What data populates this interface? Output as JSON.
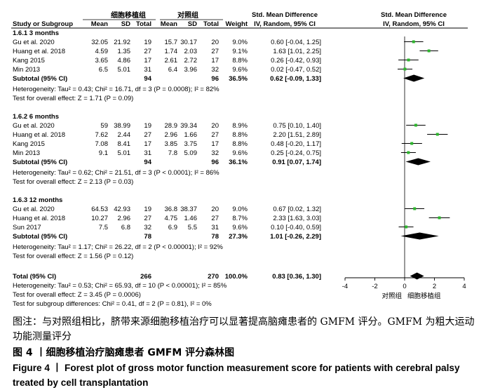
{
  "header": {
    "exp_group": "细胞移植组",
    "ctrl_group": "对照组",
    "smd": "Std. Mean Difference",
    "ivrandom": "IV, Random, 95% CI",
    "cols": [
      "Study or Subgroup",
      "Mean",
      "SD",
      "Total",
      "Mean",
      "SD",
      "Total",
      "Weight",
      "IV, Random, 95% CI"
    ]
  },
  "chart_data": {
    "type": "forest",
    "x_ticks": [
      -4,
      -2,
      0,
      2,
      4
    ],
    "xlim": [
      -4,
      4
    ],
    "favours_left": "对照组",
    "favours_right": "细胞移植组",
    "subgroups": [
      {
        "title": "1.6.1 3 months",
        "studies": [
          {
            "study": "Gu et al. 2020",
            "exp_mean": "32.05",
            "exp_sd": "21.92",
            "exp_n": "19",
            "ctrl_mean": "15.7",
            "ctrl_sd": "30.17",
            "ctrl_n": "20",
            "weight": "9.0%",
            "ci_text": "0.60 [-0.04, 1.25]",
            "est": 0.6,
            "lo": -0.04,
            "hi": 1.25
          },
          {
            "study": "Huang et al. 2018",
            "exp_mean": "4.59",
            "exp_sd": "1.35",
            "exp_n": "27",
            "ctrl_mean": "1.74",
            "ctrl_sd": "2.03",
            "ctrl_n": "27",
            "weight": "9.1%",
            "ci_text": "1.63 [1.01, 2.25]",
            "est": 1.63,
            "lo": 1.01,
            "hi": 2.25
          },
          {
            "study": "Kang 2015",
            "exp_mean": "3.65",
            "exp_sd": "4.86",
            "exp_n": "17",
            "ctrl_mean": "2.61",
            "ctrl_sd": "2.72",
            "ctrl_n": "17",
            "weight": "8.8%",
            "ci_text": "0.26 [-0.42, 0.93]",
            "est": 0.26,
            "lo": -0.42,
            "hi": 0.93
          },
          {
            "study": "Min 2013",
            "exp_mean": "6.5",
            "exp_sd": "5.01",
            "exp_n": "31",
            "ctrl_mean": "6.4",
            "ctrl_sd": "3.96",
            "ctrl_n": "32",
            "weight": "9.6%",
            "ci_text": "0.02 [-0.47, 0.52]",
            "est": 0.02,
            "lo": -0.47,
            "hi": 0.52
          }
        ],
        "subtotal": {
          "label": "Subtotal (95% CI)",
          "exp_n": "94",
          "ctrl_n": "96",
          "weight": "36.5%",
          "ci_text": "0.62 [-0.09, 1.33]",
          "est": 0.62,
          "lo": -0.09,
          "hi": 1.33
        },
        "heterogeneity": "Heterogeneity: Tau² = 0.43; Chi² = 16.71, df = 3 (P = 0.0008); I² = 82%",
        "overall_effect": "Test for overall effect: Z = 1.71 (P = 0.09)"
      },
      {
        "title": "1.6.2 6 months",
        "studies": [
          {
            "study": "Gu et al. 2020",
            "exp_mean": "59",
            "exp_sd": "38.99",
            "exp_n": "19",
            "ctrl_mean": "28.9",
            "ctrl_sd": "39.34",
            "ctrl_n": "20",
            "weight": "8.9%",
            "ci_text": "0.75 [0.10, 1.40]",
            "est": 0.75,
            "lo": 0.1,
            "hi": 1.4
          },
          {
            "study": "Huang et al. 2018",
            "exp_mean": "7.62",
            "exp_sd": "2.44",
            "exp_n": "27",
            "ctrl_mean": "2.96",
            "ctrl_sd": "1.66",
            "ctrl_n": "27",
            "weight": "8.8%",
            "ci_text": "2.20 [1.51, 2.89]",
            "est": 2.2,
            "lo": 1.51,
            "hi": 2.89
          },
          {
            "study": "Kang 2015",
            "exp_mean": "7.08",
            "exp_sd": "8.41",
            "exp_n": "17",
            "ctrl_mean": "3.85",
            "ctrl_sd": "3.75",
            "ctrl_n": "17",
            "weight": "8.8%",
            "ci_text": "0.48 [-0.20, 1.17]",
            "est": 0.48,
            "lo": -0.2,
            "hi": 1.17
          },
          {
            "study": "Min 2013",
            "exp_mean": "9.1",
            "exp_sd": "5.01",
            "exp_n": "31",
            "ctrl_mean": "7.8",
            "ctrl_sd": "5.09",
            "ctrl_n": "32",
            "weight": "9.6%",
            "ci_text": "0.25 [-0.24, 0.75]",
            "est": 0.25,
            "lo": -0.24,
            "hi": 0.75
          }
        ],
        "subtotal": {
          "label": "Subtotal (95% CI)",
          "exp_n": "94",
          "ctrl_n": "96",
          "weight": "36.1%",
          "ci_text": "0.91 [0.07, 1.74]",
          "est": 0.91,
          "lo": 0.07,
          "hi": 1.74
        },
        "heterogeneity": "Heterogeneity: Tau² = 0.62; Chi² = 21.51, df = 3 (P < 0.0001); I² = 86%",
        "overall_effect": "Test for overall effect: Z = 2.13 (P = 0.03)"
      },
      {
        "title": "1.6.3 12 months",
        "studies": [
          {
            "study": "Gu et al. 2020",
            "exp_mean": "64.53",
            "exp_sd": "42.93",
            "exp_n": "19",
            "ctrl_mean": "36.8",
            "ctrl_sd": "38.37",
            "ctrl_n": "20",
            "weight": "9.0%",
            "ci_text": "0.67 [0.02, 1.32]",
            "est": 0.67,
            "lo": 0.02,
            "hi": 1.32
          },
          {
            "study": "Huang et al. 2018",
            "exp_mean": "10.27",
            "exp_sd": "2.96",
            "exp_n": "27",
            "ctrl_mean": "4.75",
            "ctrl_sd": "1.46",
            "ctrl_n": "27",
            "weight": "8.7%",
            "ci_text": "2.33 [1.63, 3.03]",
            "est": 2.33,
            "lo": 1.63,
            "hi": 3.03
          },
          {
            "study": "Sun 2017",
            "exp_mean": "7.5",
            "exp_sd": "6.8",
            "exp_n": "32",
            "ctrl_mean": "6.9",
            "ctrl_sd": "5.5",
            "ctrl_n": "31",
            "weight": "9.6%",
            "ci_text": "0.10 [-0.40, 0.59]",
            "est": 0.1,
            "lo": -0.4,
            "hi": 0.59
          }
        ],
        "subtotal": {
          "label": "Subtotal (95% CI)",
          "exp_n": "78",
          "ctrl_n": "78",
          "weight": "27.3%",
          "ci_text": "1.01 [-0.26, 2.29]",
          "est": 1.01,
          "lo": -0.26,
          "hi": 2.29
        },
        "heterogeneity": "Heterogeneity: Tau² = 1.17; Chi² = 26.22, df = 2 (P < 0.00001); I² = 92%",
        "overall_effect": "Test for overall effect: Z = 1.56 (P = 0.12)"
      }
    ],
    "total": {
      "label": "Total (95% CI)",
      "exp_n": "266",
      "ctrl_n": "270",
      "weight": "100.0%",
      "ci_text": "0.83 [0.36, 1.30]",
      "est": 0.83,
      "lo": 0.36,
      "hi": 1.3
    },
    "footer": [
      "Heterogeneity: Tau² = 0.53; Chi² = 65.93, df = 10 (P < 0.00001); I² = 85%",
      "Test for overall effect: Z = 3.45 (P = 0.0006)",
      "Test for subgroup differences: Chi² = 0.41, df = 2 (P = 0.81), I² = 0%"
    ],
    "colors": {
      "point": "#2db52d",
      "line": "#000000"
    }
  },
  "caption": {
    "note": "图注：与对照组相比，脐带来源细胞移植治疗可以显著提高脑瘫患者的 GMFM 评分。GMFM 为粗大运动功能测量评分",
    "figure_cn": "图 4 丨细胞移植治疗脑瘫患者 GMFM 评分森林图",
    "figure_en": "Figure 4 丨 Forest plot of gross motor function measurement score for patients with cerebral palsy treated by cell transplantation"
  }
}
